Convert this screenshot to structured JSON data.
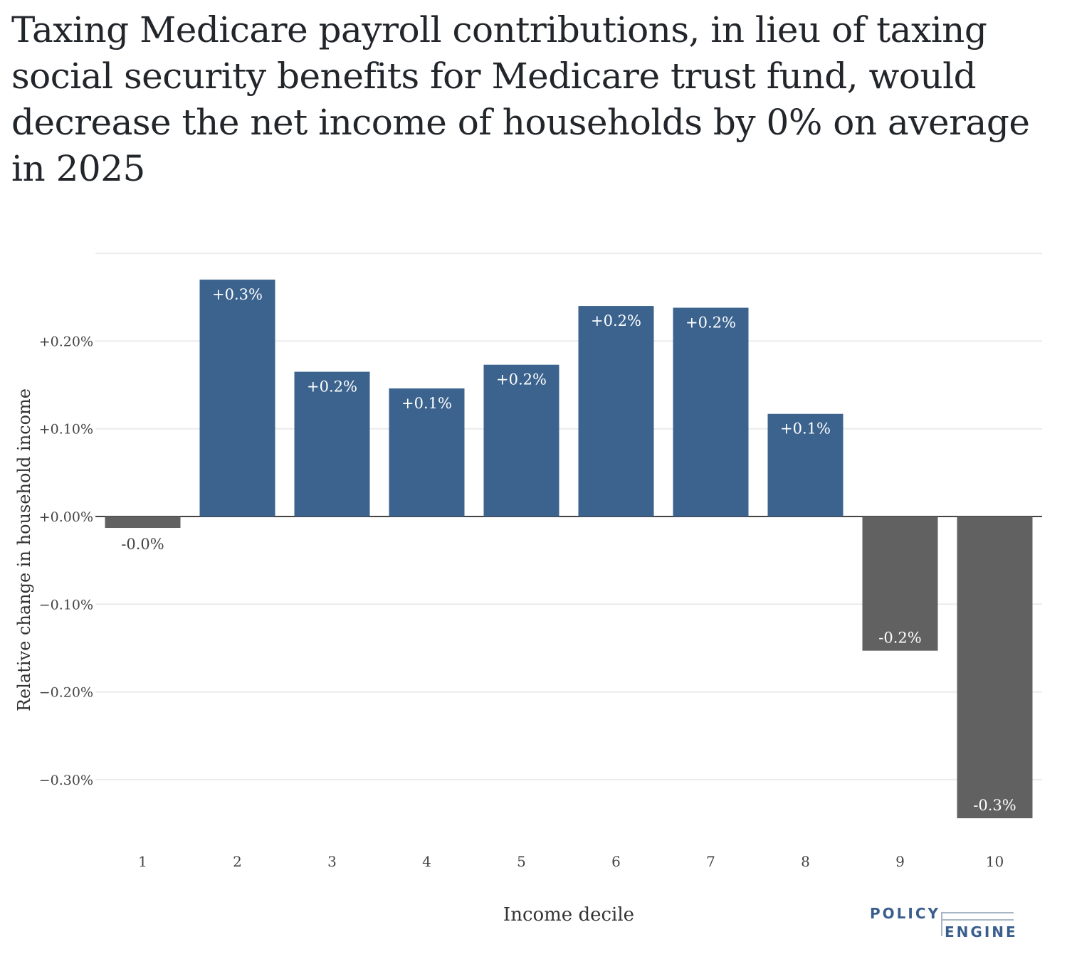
{
  "title": "Taxing Medicare payroll contributions, in lieu of taxing social security benefits for Medicare trust fund, would decrease the net income of households by 0% on average in 2025",
  "logo": {
    "line1": "POLICY",
    "line2": "ENGINE"
  },
  "colors": {
    "positive": "#3b638e",
    "negative": "#616161",
    "grid": "#ebebeb",
    "zeroline": "#444444"
  },
  "chart_data": {
    "type": "bar",
    "title": "Taxing Medicare payroll contributions, in lieu of taxing social security benefits for Medicare trust fund, would decrease the net income of households by 0% on average in 2025",
    "xlabel": "Income decile",
    "ylabel": "Relative change in household income",
    "categories": [
      "1",
      "2",
      "3",
      "4",
      "5",
      "6",
      "7",
      "8",
      "9",
      "10"
    ],
    "values": [
      -0.013,
      0.27,
      0.165,
      0.146,
      0.173,
      0.24,
      0.238,
      0.117,
      -0.153,
      -0.344
    ],
    "labels": [
      "-0.0%",
      "+0.3%",
      "+0.2%",
      "+0.1%",
      "+0.2%",
      "+0.2%",
      "+0.2%",
      "+0.1%",
      "-0.2%",
      "-0.3%"
    ],
    "yticks": [
      0.2,
      0.1,
      0.0,
      -0.1,
      -0.2,
      -0.3
    ],
    "ytick_labels": [
      "+0.20%",
      "+0.10%",
      "+0.00%",
      "−0.10%",
      "−0.20%",
      "−0.30%"
    ],
    "ylim": [
      -0.365,
      0.3
    ],
    "grid": true
  }
}
